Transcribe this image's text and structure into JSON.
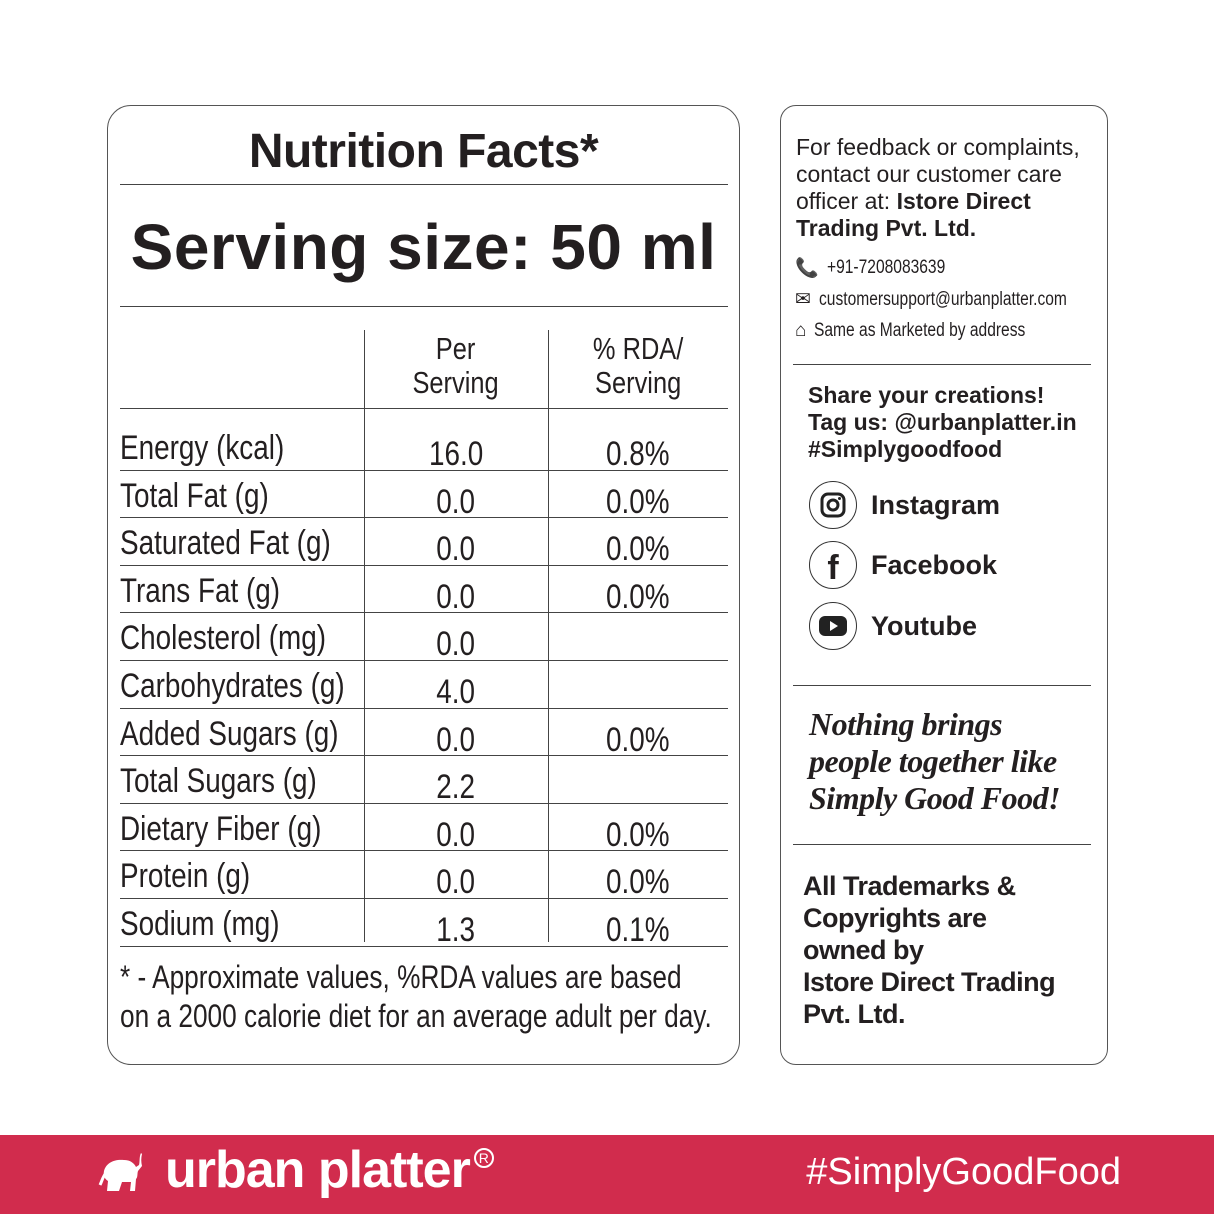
{
  "nutrition": {
    "title": "Nutrition Facts*",
    "serving_size": "Serving size: 50 ml",
    "col_headers": [
      [
        "Per",
        "Serving"
      ],
      [
        "% RDA/",
        "Serving"
      ]
    ],
    "rows": [
      {
        "label": "Energy (kcal)",
        "per_serving": "16.0",
        "rda": "0.8%"
      },
      {
        "label": "Total Fat (g)",
        "per_serving": "0.0",
        "rda": "0.0%"
      },
      {
        "label": "Saturated Fat (g)",
        "per_serving": "0.0",
        "rda": "0.0%"
      },
      {
        "label": "Trans Fat (g)",
        "per_serving": "0.0",
        "rda": "0.0%"
      },
      {
        "label": "Cholesterol (mg)",
        "per_serving": "0.0",
        "rda": ""
      },
      {
        "label": "Carbohydrates (g)",
        "per_serving": "4.0",
        "rda": ""
      },
      {
        "label": "Added Sugars (g)",
        "per_serving": "0.0",
        "rda": "0.0%"
      },
      {
        "label": "Total Sugars (g)",
        "per_serving": "2.2",
        "rda": ""
      },
      {
        "label": "Dietary Fiber (g)",
        "per_serving": "0.0",
        "rda": "0.0%"
      },
      {
        "label": "Protein (g)",
        "per_serving": "0.0",
        "rda": "0.0%"
      },
      {
        "label": "Sodium (mg)",
        "per_serving": "1.3",
        "rda": "0.1%"
      }
    ],
    "footnote": [
      "* - Approximate values, %RDA values are based",
      "on a 2000 calorie diet for an average adult per day."
    ]
  },
  "contact": {
    "intro": [
      "For feedback or complaints,",
      "contact our customer care",
      "officer at: "
    ],
    "company": [
      "Istore Direct",
      "Trading Pvt. Ltd."
    ],
    "phone": "+91-7208083639",
    "email": "customersupport@urbanplatter.com",
    "address": "Same as Marketed by address"
  },
  "social": {
    "share": [
      "Share your creations!",
      "Tag us: @urbanplatter.in",
      "#Simplygoodfood"
    ],
    "links": [
      {
        "label": "Instagram",
        "icon": "instagram-icon"
      },
      {
        "label": "Facebook",
        "icon": "facebook-icon"
      },
      {
        "label": "Youtube",
        "icon": "youtube-icon"
      }
    ]
  },
  "slogan": [
    "Nothing brings",
    "people together like",
    "Simply Good Food!"
  ],
  "trademark": [
    "All Trademarks &",
    "Copyrights are",
    "owned by",
    "Istore Direct Trading",
    "Pvt. Ltd."
  ],
  "footer": {
    "brand": "urban platter",
    "registered": "R",
    "hashtag": "#SimplyGoodFood",
    "color": "#d12c4d"
  }
}
